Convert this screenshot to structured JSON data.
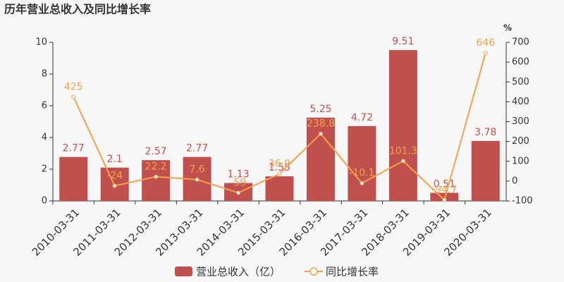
{
  "chart_data": {
    "type": "bar",
    "title": "历年营业总收入及同比增长率",
    "y2_label": "%",
    "categories": [
      "2010-03-31",
      "2011-03-31",
      "2012-03-31",
      "2013-03-31",
      "2014-03-31",
      "2015-03-31",
      "2016-03-31",
      "2017-03-31",
      "2018-03-31",
      "2019-03-31",
      "2020-03-31"
    ],
    "series": [
      {
        "name": "营业总收入（亿）",
        "type": "bar",
        "color": "#c0504e",
        "values": [
          2.77,
          2.1,
          2.57,
          2.77,
          1.13,
          1.55,
          5.25,
          4.72,
          9.51,
          0.51,
          3.78
        ]
      },
      {
        "name": "同比增长率",
        "type": "line",
        "axis": "y2",
        "color": "#f5a04a",
        "values": [
          425,
          -24,
          22.2,
          7.6,
          -59,
          36.9,
          238.8,
          -10.1,
          101.3,
          -94.7,
          646
        ]
      }
    ],
    "ylim": [
      0,
      10
    ],
    "yticks": [
      0,
      2,
      4,
      6,
      8,
      10
    ],
    "y2lim": [
      -100,
      700
    ],
    "y2ticks": [
      -100,
      0,
      100,
      200,
      300,
      400,
      500,
      600,
      700
    ],
    "grid": false,
    "legend": "bottom"
  }
}
